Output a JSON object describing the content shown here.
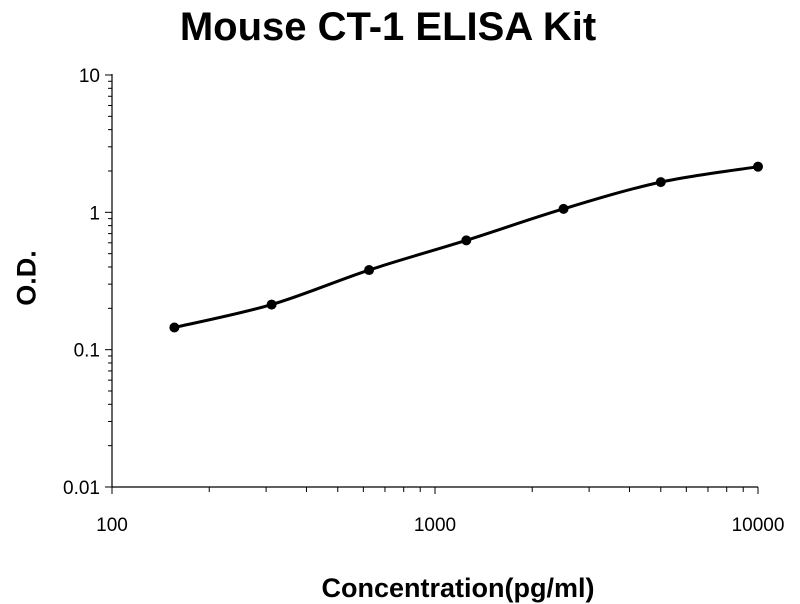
{
  "chart_data": {
    "type": "line",
    "title": "Mouse CT-1 ELISA Kit",
    "xlabel": "Concentration(pg/ml)",
    "ylabel": "O.D.",
    "x_scale": "log",
    "y_scale": "log",
    "xlim": [
      100,
      10000
    ],
    "ylim": [
      0.01,
      10
    ],
    "x_ticks": [
      "100",
      "1000",
      "10000"
    ],
    "y_ticks": [
      "0.01",
      "0.1",
      "1",
      "10"
    ],
    "grid": false,
    "legend": "none",
    "series": [
      {
        "x": [
          156,
          312,
          625,
          1250,
          2500,
          5000,
          10000
        ],
        "y": [
          0.145,
          0.213,
          0.38,
          0.625,
          1.06,
          1.66,
          2.15
        ]
      }
    ],
    "colors": {
      "line": "#000000",
      "marker": "#000000",
      "axis": "#000000"
    }
  }
}
